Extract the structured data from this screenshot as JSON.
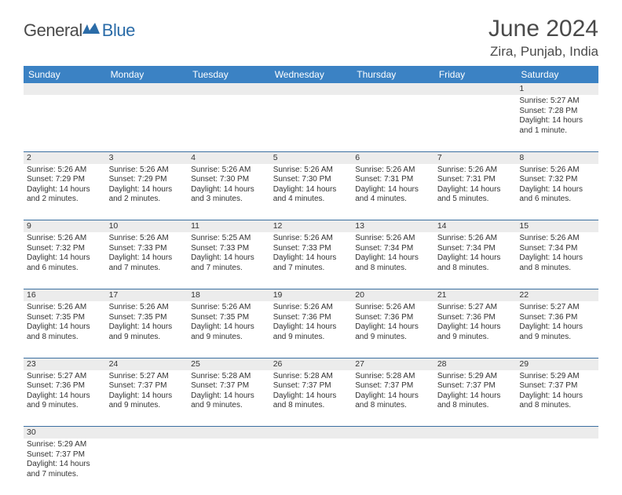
{
  "logo": {
    "text1": "General",
    "text2": "Blue"
  },
  "title": "June 2024",
  "location": "Zira, Punjab, India",
  "colors": {
    "header_bg": "#3b82c4",
    "header_text": "#ffffff",
    "daynum_bg": "#ececec",
    "border": "#3b6fa0",
    "logo_gray": "#4a4a4a",
    "logo_blue": "#2b6ca8"
  },
  "weekdays": [
    "Sunday",
    "Monday",
    "Tuesday",
    "Wednesday",
    "Thursday",
    "Friday",
    "Saturday"
  ],
  "weeks": [
    {
      "nums": [
        "",
        "",
        "",
        "",
        "",
        "",
        "1"
      ],
      "cells": [
        "",
        "",
        "",
        "",
        "",
        "",
        "Sunrise: 5:27 AM\nSunset: 7:28 PM\nDaylight: 14 hours and 1 minute."
      ]
    },
    {
      "nums": [
        "2",
        "3",
        "4",
        "5",
        "6",
        "7",
        "8"
      ],
      "cells": [
        "Sunrise: 5:26 AM\nSunset: 7:29 PM\nDaylight: 14 hours and 2 minutes.",
        "Sunrise: 5:26 AM\nSunset: 7:29 PM\nDaylight: 14 hours and 2 minutes.",
        "Sunrise: 5:26 AM\nSunset: 7:30 PM\nDaylight: 14 hours and 3 minutes.",
        "Sunrise: 5:26 AM\nSunset: 7:30 PM\nDaylight: 14 hours and 4 minutes.",
        "Sunrise: 5:26 AM\nSunset: 7:31 PM\nDaylight: 14 hours and 4 minutes.",
        "Sunrise: 5:26 AM\nSunset: 7:31 PM\nDaylight: 14 hours and 5 minutes.",
        "Sunrise: 5:26 AM\nSunset: 7:32 PM\nDaylight: 14 hours and 6 minutes."
      ]
    },
    {
      "nums": [
        "9",
        "10",
        "11",
        "12",
        "13",
        "14",
        "15"
      ],
      "cells": [
        "Sunrise: 5:26 AM\nSunset: 7:32 PM\nDaylight: 14 hours and 6 minutes.",
        "Sunrise: 5:26 AM\nSunset: 7:33 PM\nDaylight: 14 hours and 7 minutes.",
        "Sunrise: 5:25 AM\nSunset: 7:33 PM\nDaylight: 14 hours and 7 minutes.",
        "Sunrise: 5:26 AM\nSunset: 7:33 PM\nDaylight: 14 hours and 7 minutes.",
        "Sunrise: 5:26 AM\nSunset: 7:34 PM\nDaylight: 14 hours and 8 minutes.",
        "Sunrise: 5:26 AM\nSunset: 7:34 PM\nDaylight: 14 hours and 8 minutes.",
        "Sunrise: 5:26 AM\nSunset: 7:34 PM\nDaylight: 14 hours and 8 minutes."
      ]
    },
    {
      "nums": [
        "16",
        "17",
        "18",
        "19",
        "20",
        "21",
        "22"
      ],
      "cells": [
        "Sunrise: 5:26 AM\nSunset: 7:35 PM\nDaylight: 14 hours and 8 minutes.",
        "Sunrise: 5:26 AM\nSunset: 7:35 PM\nDaylight: 14 hours and 9 minutes.",
        "Sunrise: 5:26 AM\nSunset: 7:35 PM\nDaylight: 14 hours and 9 minutes.",
        "Sunrise: 5:26 AM\nSunset: 7:36 PM\nDaylight: 14 hours and 9 minutes.",
        "Sunrise: 5:26 AM\nSunset: 7:36 PM\nDaylight: 14 hours and 9 minutes.",
        "Sunrise: 5:27 AM\nSunset: 7:36 PM\nDaylight: 14 hours and 9 minutes.",
        "Sunrise: 5:27 AM\nSunset: 7:36 PM\nDaylight: 14 hours and 9 minutes."
      ]
    },
    {
      "nums": [
        "23",
        "24",
        "25",
        "26",
        "27",
        "28",
        "29"
      ],
      "cells": [
        "Sunrise: 5:27 AM\nSunset: 7:36 PM\nDaylight: 14 hours and 9 minutes.",
        "Sunrise: 5:27 AM\nSunset: 7:37 PM\nDaylight: 14 hours and 9 minutes.",
        "Sunrise: 5:28 AM\nSunset: 7:37 PM\nDaylight: 14 hours and 9 minutes.",
        "Sunrise: 5:28 AM\nSunset: 7:37 PM\nDaylight: 14 hours and 8 minutes.",
        "Sunrise: 5:28 AM\nSunset: 7:37 PM\nDaylight: 14 hours and 8 minutes.",
        "Sunrise: 5:29 AM\nSunset: 7:37 PM\nDaylight: 14 hours and 8 minutes.",
        "Sunrise: 5:29 AM\nSunset: 7:37 PM\nDaylight: 14 hours and 8 minutes."
      ]
    },
    {
      "nums": [
        "30",
        "",
        "",
        "",
        "",
        "",
        ""
      ],
      "cells": [
        "Sunrise: 5:29 AM\nSunset: 7:37 PM\nDaylight: 14 hours and 7 minutes.",
        "",
        "",
        "",
        "",
        "",
        ""
      ]
    }
  ]
}
